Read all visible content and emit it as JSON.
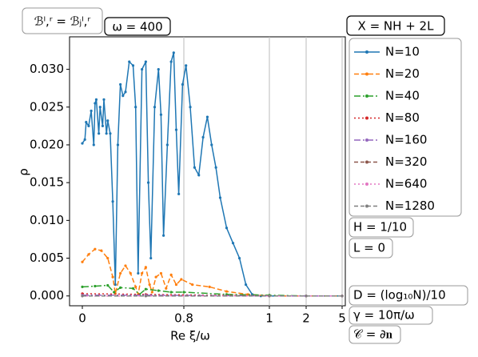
{
  "chart_data": {
    "type": "line",
    "ylabel": "ρ",
    "xlabel": "Re ξ/ω",
    "annotations": [
      "ℬˡ,ʳ = ℬⱼˡ,ʳ",
      "ω = 400",
      "H = 1/10",
      "L = 0",
      "D = (log₁₀N)/10",
      "γ = 10π/ω",
      "𝒞 = ∂𝐧"
    ],
    "legend_title": "X = NH + 2L",
    "xlim": [
      -0.1,
      5.3
    ],
    "xticks": [
      0,
      0.8,
      1,
      2,
      5
    ],
    "ylim": [
      -0.0013,
      0.0343
    ],
    "yticks": [
      {
        "value": 0,
        "label": "0.000"
      },
      {
        "value": 0.005,
        "label": "0.005"
      },
      {
        "value": 0.01,
        "label": "0.010"
      },
      {
        "value": 0.015,
        "label": "0.015"
      },
      {
        "value": 0.02,
        "label": "0.020"
      },
      {
        "value": 0.025,
        "label": "0.025"
      },
      {
        "value": 0.03,
        "label": "0.030"
      }
    ],
    "grid": true,
    "series": [
      {
        "name": "N=10",
        "color": "#1f77b4",
        "x": [
          0,
          0.02,
          0.03,
          0.05,
          0.07,
          0.09,
          0.1,
          0.11,
          0.13,
          0.14,
          0.16,
          0.17,
          0.19,
          0.2,
          0.22,
          0.24,
          0.26,
          0.28,
          0.3,
          0.32,
          0.34,
          0.37,
          0.4,
          0.42,
          0.44,
          0.47,
          0.5,
          0.52,
          0.54,
          0.57,
          0.6,
          0.62,
          0.64,
          0.67,
          0.7,
          0.72,
          0.74,
          0.76,
          0.79,
          0.805,
          0.815,
          0.825,
          0.835,
          0.845,
          0.855,
          0.865,
          0.875,
          0.885,
          0.9,
          0.915,
          0.93,
          0.945,
          0.96,
          0.98,
          1,
          2,
          5
        ],
        "values": [
          0.0202,
          0.0207,
          0.023,
          0.0225,
          0.0245,
          0.02,
          0.0255,
          0.026,
          0.0215,
          0.025,
          0.0225,
          0.026,
          0.0215,
          0.0232,
          0.0215,
          0.0125,
          0.0015,
          0.02,
          0.028,
          0.0265,
          0.027,
          0.031,
          0.0305,
          0.025,
          0.003,
          0.03,
          0.031,
          0.015,
          0.005,
          0.025,
          0.03,
          0.024,
          0.008,
          0.02,
          0.031,
          0.0322,
          0.022,
          0.0135,
          0.028,
          0.0305,
          0.025,
          0.017,
          0.016,
          0.021,
          0.0237,
          0.02,
          0.017,
          0.013,
          0.009,
          0.007,
          0.005,
          0.0015,
          0.0002,
          0,
          0,
          0,
          0
        ]
      },
      {
        "name": "N=20",
        "color": "#ff7f0e",
        "x": [
          0,
          0.05,
          0.1,
          0.15,
          0.2,
          0.24,
          0.26,
          0.3,
          0.34,
          0.38,
          0.42,
          0.44,
          0.47,
          0.5,
          0.53,
          0.55,
          0.58,
          0.62,
          0.66,
          0.7,
          0.74,
          0.78,
          0.82,
          0.86,
          0.9,
          0.95,
          1,
          2,
          5
        ],
        "values": [
          0.0045,
          0.0055,
          0.0062,
          0.006,
          0.005,
          0.0025,
          0.0003,
          0.003,
          0.004,
          0.003,
          0.0012,
          0.0002,
          0.003,
          0.0038,
          0.0015,
          0.0005,
          0.0025,
          0.003,
          0.001,
          0.0028,
          0.0015,
          0.0022,
          0.0015,
          0.0012,
          0.0006,
          0.0002,
          0,
          0,
          0
        ]
      },
      {
        "name": "N=40",
        "color": "#2ca02c",
        "x": [
          0,
          0.1,
          0.2,
          0.25,
          0.3,
          0.4,
          0.45,
          0.5,
          0.6,
          0.7,
          0.8,
          0.9,
          1,
          2,
          5
        ],
        "values": [
          0.0012,
          0.0013,
          0.0014,
          0.0005,
          0.0011,
          0.001,
          0.0002,
          0.0009,
          0.0007,
          0.0005,
          0.0005,
          0.0002,
          0.0001,
          0,
          0
        ]
      },
      {
        "name": "N=80",
        "color": "#d62728",
        "x": [
          0,
          0.5,
          1,
          2,
          5
        ],
        "values": [
          0.0003,
          0.0002,
          0,
          0,
          0
        ]
      },
      {
        "name": "N=160",
        "color": "#9467bd",
        "x": [
          0,
          0.5,
          1,
          2,
          5
        ],
        "values": [
          0.0001,
          0.0001,
          0,
          0,
          0
        ]
      },
      {
        "name": "N=320",
        "color": "#8c564b",
        "x": [
          0,
          0.5,
          1,
          2,
          5
        ],
        "values": [
          0,
          0,
          0,
          0,
          0
        ]
      },
      {
        "name": "N=640",
        "color": "#e377c2",
        "x": [
          0,
          0.5,
          1,
          2,
          5
        ],
        "values": [
          0,
          0,
          0,
          0,
          0
        ]
      },
      {
        "name": "N=1280",
        "color": "#7f7f7f",
        "x": [
          0,
          0.5,
          1,
          2,
          5
        ],
        "values": [
          0,
          0,
          0,
          0,
          0
        ]
      }
    ]
  }
}
